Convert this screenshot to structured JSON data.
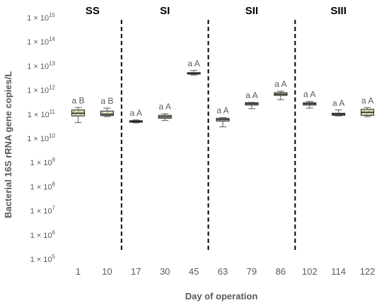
{
  "chart_data": {
    "type": "box",
    "ylabel": "Bacterial 16S rRNA gene copies/L",
    "xlabel": "Day of operation",
    "yscale": "log",
    "ylim_exponents": [
      5,
      15
    ],
    "y_ticks": [
      {
        "exp": 5,
        "label": "1 × 10",
        "sup": "5"
      },
      {
        "exp": 6,
        "label": "1 × 10",
        "sup": "6"
      },
      {
        "exp": 7,
        "label": "1 × 10",
        "sup": "7"
      },
      {
        "exp": 8,
        "label": "1 × 10",
        "sup": "8"
      },
      {
        "exp": 9,
        "label": "1 × 10",
        "sup": "9"
      },
      {
        "exp": 10,
        "label": "1 × 10",
        "sup": "10"
      },
      {
        "exp": 11,
        "label": "1 × 10",
        "sup": "11"
      },
      {
        "exp": 12,
        "label": "1 × 10",
        "sup": "12"
      },
      {
        "exp": 13,
        "label": "1 × 10",
        "sup": "13"
      },
      {
        "exp": 14,
        "label": "1 × 10",
        "sup": "14"
      },
      {
        "exp": 15,
        "label": "1 × 10",
        "sup": "15"
      }
    ],
    "categories": [
      "1",
      "10",
      "17",
      "30",
      "45",
      "63",
      "79",
      "86",
      "102",
      "114",
      "122"
    ],
    "boxes": [
      {
        "day": "1",
        "min": 45000000000.0,
        "q1": 85000000000.0,
        "median": 110000000000.0,
        "q3": 150000000000.0,
        "max": 190000000000.0,
        "sig": "a B"
      },
      {
        "day": "10",
        "min": 80000000000.0,
        "q1": 88000000000.0,
        "median": 100000000000.0,
        "q3": 135000000000.0,
        "max": 180000000000.0,
        "sig": "a B"
      },
      {
        "day": "17",
        "min": 44000000000.0,
        "q1": 47000000000.0,
        "median": 50000000000.0,
        "q3": 54000000000.0,
        "max": 58000000000.0,
        "sig": "a A"
      },
      {
        "day": "30",
        "min": 55000000000.0,
        "q1": 68000000000.0,
        "median": 78000000000.0,
        "q3": 90000000000.0,
        "max": 105000000000.0,
        "sig": "a A"
      },
      {
        "day": "45",
        "min": 4200000000000.0,
        "q1": 4600000000000.0,
        "median": 4900000000000.0,
        "q3": 5300000000000.0,
        "max": 6500000000000.0,
        "sig": "a A"
      },
      {
        "day": "63",
        "min": 30000000000.0,
        "q1": 52000000000.0,
        "median": 60000000000.0,
        "q3": 68000000000.0,
        "max": 72000000000.0,
        "sig": "a A"
      },
      {
        "day": "79",
        "min": 170000000000.0,
        "q1": 240000000000.0,
        "median": 270000000000.0,
        "q3": 300000000000.0,
        "max": 310000000000.0,
        "sig": "a A"
      },
      {
        "day": "86",
        "min": 400000000000.0,
        "q1": 600000000000.0,
        "median": 680000000000.0,
        "q3": 780000000000.0,
        "max": 900000000000.0,
        "sig": "a A"
      },
      {
        "day": "102",
        "min": 180000000000.0,
        "q1": 240000000000.0,
        "median": 270000000000.0,
        "q3": 300000000000.0,
        "max": 340000000000.0,
        "sig": "a A"
      },
      {
        "day": "114",
        "min": 85000000000.0,
        "q1": 90000000000.0,
        "median": 100000000000.0,
        "q3": 110000000000.0,
        "max": 150000000000.0,
        "sig": "a A"
      },
      {
        "day": "122",
        "min": 80000000000.0,
        "q1": 90000000000.0,
        "median": 120000000000.0,
        "q3": 160000000000.0,
        "max": 190000000000.0,
        "sig": "a A"
      }
    ],
    "phases": [
      {
        "label": "SS",
        "from": 0,
        "to": 1
      },
      {
        "label": "SI",
        "from": 2,
        "to": 4
      },
      {
        "label": "SII",
        "from": 5,
        "to": 7
      },
      {
        "label": "SIII",
        "from": 8,
        "to": 10
      }
    ],
    "dividers_after": [
      1,
      4,
      7
    ],
    "colors": {
      "box_fill": "#d8e4bc",
      "box_stroke": "#3f3f3f",
      "whisker": "#595959",
      "divider": "#000000"
    }
  }
}
